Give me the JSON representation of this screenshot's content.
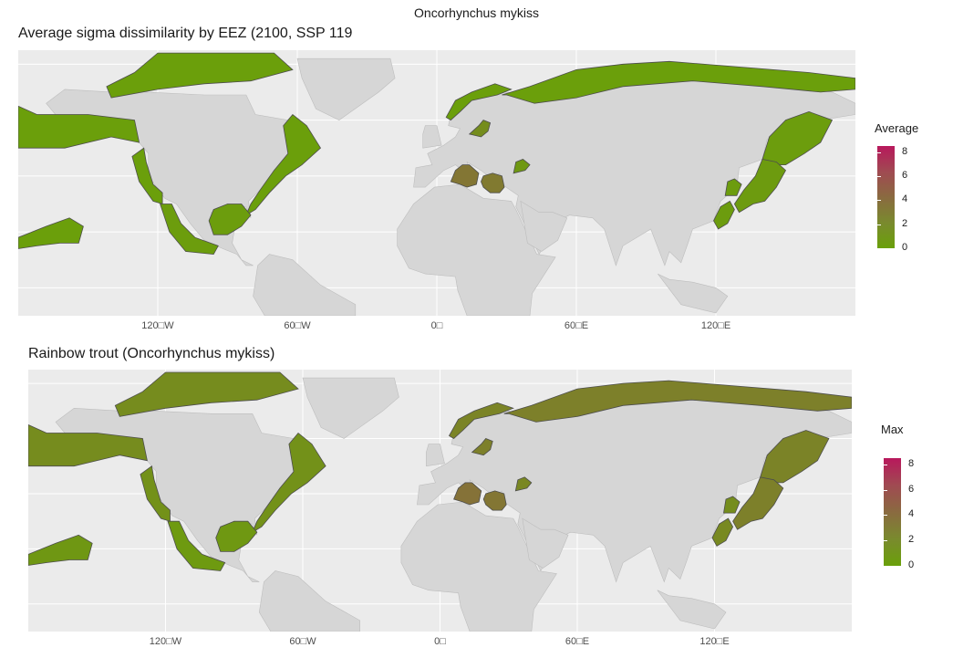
{
  "suptitle": "Oncorhynchus mykiss",
  "chart_data": [
    {
      "type": "choropleth-map",
      "title": "Average sigma dissimilarity by EEZ (2100, SSP 119",
      "x_ticks": [
        "120□W",
        "60□W",
        "0□",
        "60□E",
        "120□E"
      ],
      "x_tick_values": [
        -120,
        -60,
        0,
        60,
        120
      ],
      "xlim": [
        -180,
        180
      ],
      "ylim": [
        -10,
        85
      ],
      "grid": true,
      "legend": {
        "title": "Average",
        "position": "right",
        "min": 0,
        "max": 8.5,
        "ticks": [
          "8",
          "6",
          "4",
          "2",
          "0"
        ],
        "tick_values": [
          8,
          6,
          4,
          2,
          0
        ]
      },
      "colors": {
        "low": "#6aa00a",
        "high": "#b8185c",
        "land": "#d6d6d6",
        "panel": "#ebebeb"
      },
      "regions": [
        {
          "area": "North Pacific / Alaska",
          "lon": -160,
          "lat": 60,
          "value": 0.1
        },
        {
          "area": "Canada Arctic",
          "lon": -100,
          "lat": 72,
          "value": 0.1
        },
        {
          "area": "USA West Coast",
          "lon": -125,
          "lat": 40,
          "value": 0.1
        },
        {
          "area": "USA East Coast",
          "lon": -72,
          "lat": 38,
          "value": 0.1
        },
        {
          "area": "Gulf of Mexico",
          "lon": -90,
          "lat": 25,
          "value": 0.2
        },
        {
          "area": "Mexico Pacific",
          "lon": -108,
          "lat": 20,
          "value": 0.2
        },
        {
          "area": "Hawaii",
          "lon": -157,
          "lat": 21,
          "value": 0.1
        },
        {
          "area": "Russia Arctic",
          "lon": 90,
          "lat": 75,
          "value": 0.1
        },
        {
          "area": "Scandinavia",
          "lon": 20,
          "lat": 68,
          "value": 0.1
        },
        {
          "area": "Baltic Sea",
          "lon": 20,
          "lat": 57,
          "value": 1.5
        },
        {
          "area": "Mediterranean (Italy)",
          "lon": 12,
          "lat": 39,
          "value": 3.3
        },
        {
          "area": "Mediterranean (Greece)",
          "lon": 23,
          "lat": 36,
          "value": 3.0
        },
        {
          "area": "Black Sea",
          "lon": 35,
          "lat": 43,
          "value": 0.6
        },
        {
          "area": "Okhotsk / Kamchatka",
          "lon": 155,
          "lat": 55,
          "value": 0.2
        },
        {
          "area": "Japan",
          "lon": 140,
          "lat": 36,
          "value": 0.4
        },
        {
          "area": "Korea",
          "lon": 128,
          "lat": 35,
          "value": 0.3
        },
        {
          "area": "East China Sea",
          "lon": 125,
          "lat": 28,
          "value": 0.3
        }
      ]
    },
    {
      "type": "choropleth-map",
      "title": "Rainbow trout (Oncorhynchus mykiss)",
      "x_ticks": [
        "120□W",
        "60□W",
        "0□",
        "60□E",
        "120□E"
      ],
      "x_tick_values": [
        -120,
        -60,
        0,
        60,
        120
      ],
      "xlim": [
        -180,
        180
      ],
      "ylim": [
        -10,
        85
      ],
      "grid": true,
      "legend": {
        "title": "Max",
        "position": "right",
        "min": 0,
        "max": 8.5,
        "ticks": [
          "8",
          "6",
          "4",
          "2",
          "0"
        ],
        "tick_values": [
          8,
          6,
          4,
          2,
          0
        ]
      },
      "colors": {
        "low": "#6aa00a",
        "high": "#b8185c",
        "land": "#d6d6d6",
        "panel": "#ebebeb"
      },
      "regions": [
        {
          "area": "North Pacific / Alaska",
          "lon": -160,
          "lat": 60,
          "value": 1.6
        },
        {
          "area": "Canada Arctic",
          "lon": -100,
          "lat": 72,
          "value": 1.6
        },
        {
          "area": "USA West Coast",
          "lon": -125,
          "lat": 40,
          "value": 1.2
        },
        {
          "area": "USA East Coast",
          "lon": -72,
          "lat": 38,
          "value": 1.2
        },
        {
          "area": "Gulf of Mexico",
          "lon": -90,
          "lat": 25,
          "value": 0.6
        },
        {
          "area": "Mexico Pacific",
          "lon": -108,
          "lat": 20,
          "value": 0.5
        },
        {
          "area": "Hawaii",
          "lon": -157,
          "lat": 21,
          "value": 0.7
        },
        {
          "area": "Russia Arctic",
          "lon": 90,
          "lat": 75,
          "value": 2.5
        },
        {
          "area": "Scandinavia",
          "lon": 20,
          "lat": 68,
          "value": 2.2
        },
        {
          "area": "Baltic Sea",
          "lon": 20,
          "lat": 57,
          "value": 2.5
        },
        {
          "area": "Mediterranean (Italy)",
          "lon": 12,
          "lat": 39,
          "value": 3.6
        },
        {
          "area": "Mediterranean (Greece)",
          "lon": 23,
          "lat": 36,
          "value": 3.3
        },
        {
          "area": "Black Sea",
          "lon": 35,
          "lat": 43,
          "value": 2.0
        },
        {
          "area": "Okhotsk / Kamchatka",
          "lon": 155,
          "lat": 55,
          "value": 2.3
        },
        {
          "area": "Japan",
          "lon": 140,
          "lat": 36,
          "value": 2.5
        },
        {
          "area": "Korea",
          "lon": 128,
          "lat": 35,
          "value": 1.5
        },
        {
          "area": "East China Sea",
          "lon": 125,
          "lat": 28,
          "value": 1.8
        }
      ]
    }
  ]
}
